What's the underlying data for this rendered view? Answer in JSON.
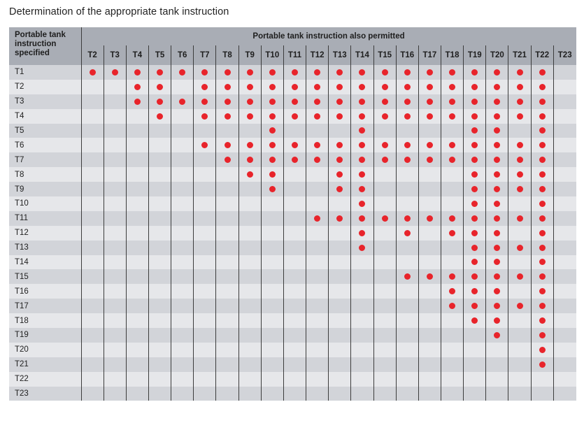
{
  "title": "Determination of the appropriate tank instruction",
  "header": {
    "corner_line1": "Portable tank",
    "corner_line2": "instruction",
    "corner_line3": "specified",
    "permitted_label": "Portable tank instruction also permitted"
  },
  "colors": {
    "dot": "#e8242b",
    "header_bg": "#a9adb5"
  },
  "chart_data": {
    "type": "table",
    "title": "Determination of the appropriate tank instruction",
    "row_header": "Portable tank instruction specified",
    "column_header": "Portable tank instruction also permitted",
    "columns": [
      "T2",
      "T3",
      "T4",
      "T5",
      "T6",
      "T7",
      "T8",
      "T9",
      "T10",
      "T11",
      "T12",
      "T13",
      "T14",
      "T15",
      "T16",
      "T17",
      "T18",
      "T19",
      "T20",
      "T21",
      "T22",
      "T23"
    ],
    "rows": [
      {
        "label": "T1",
        "permitted": [
          "T2",
          "T3",
          "T4",
          "T5",
          "T6",
          "T7",
          "T8",
          "T9",
          "T10",
          "T11",
          "T12",
          "T13",
          "T14",
          "T15",
          "T16",
          "T17",
          "T18",
          "T19",
          "T20",
          "T21",
          "T22"
        ]
      },
      {
        "label": "T2",
        "permitted": [
          "T4",
          "T5",
          "T7",
          "T8",
          "T9",
          "T10",
          "T11",
          "T12",
          "T13",
          "T14",
          "T15",
          "T16",
          "T17",
          "T18",
          "T19",
          "T20",
          "T21",
          "T22"
        ]
      },
      {
        "label": "T3",
        "permitted": [
          "T4",
          "T5",
          "T6",
          "T7",
          "T8",
          "T9",
          "T10",
          "T11",
          "T12",
          "T13",
          "T14",
          "T15",
          "T16",
          "T17",
          "T18",
          "T19",
          "T20",
          "T21",
          "T22"
        ]
      },
      {
        "label": "T4",
        "permitted": [
          "T5",
          "T7",
          "T8",
          "T9",
          "T10",
          "T11",
          "T12",
          "T13",
          "T14",
          "T15",
          "T16",
          "T17",
          "T18",
          "T19",
          "T20",
          "T21",
          "T22"
        ]
      },
      {
        "label": "T5",
        "permitted": [
          "T10",
          "T14",
          "T19",
          "T20",
          "T22"
        ]
      },
      {
        "label": "T6",
        "permitted": [
          "T7",
          "T8",
          "T9",
          "T10",
          "T11",
          "T12",
          "T13",
          "T14",
          "T15",
          "T16",
          "T17",
          "T18",
          "T19",
          "T20",
          "T21",
          "T22"
        ]
      },
      {
        "label": "T7",
        "permitted": [
          "T8",
          "T9",
          "T10",
          "T11",
          "T12",
          "T13",
          "T14",
          "T15",
          "T16",
          "T17",
          "T18",
          "T19",
          "T20",
          "T21",
          "T22"
        ]
      },
      {
        "label": "T8",
        "permitted": [
          "T9",
          "T10",
          "T13",
          "T14",
          "T19",
          "T20",
          "T21",
          "T22"
        ]
      },
      {
        "label": "T9",
        "permitted": [
          "T10",
          "T13",
          "T14",
          "T19",
          "T20",
          "T21",
          "T22"
        ]
      },
      {
        "label": "T10",
        "permitted": [
          "T14",
          "T19",
          "T20",
          "T22"
        ]
      },
      {
        "label": "T11",
        "permitted": [
          "T12",
          "T13",
          "T14",
          "T15",
          "T16",
          "T17",
          "T18",
          "T19",
          "T20",
          "T21",
          "T22"
        ]
      },
      {
        "label": "T12",
        "permitted": [
          "T14",
          "T16",
          "T18",
          "T19",
          "T20",
          "T22"
        ]
      },
      {
        "label": "T13",
        "permitted": [
          "T14",
          "T19",
          "T20",
          "T21",
          "T22"
        ]
      },
      {
        "label": "T14",
        "permitted": [
          "T19",
          "T20",
          "T22"
        ]
      },
      {
        "label": "T15",
        "permitted": [
          "T16",
          "T17",
          "T18",
          "T19",
          "T20",
          "T21",
          "T22"
        ]
      },
      {
        "label": "T16",
        "permitted": [
          "T18",
          "T19",
          "T20",
          "T22"
        ]
      },
      {
        "label": "T17",
        "permitted": [
          "T18",
          "T19",
          "T20",
          "T21",
          "T22"
        ]
      },
      {
        "label": "T18",
        "permitted": [
          "T19",
          "T20",
          "T22"
        ]
      },
      {
        "label": "T19",
        "permitted": [
          "T20",
          "T22"
        ]
      },
      {
        "label": "T20",
        "permitted": [
          "T22"
        ]
      },
      {
        "label": "T21",
        "permitted": [
          "T22"
        ]
      },
      {
        "label": "T22",
        "permitted": []
      },
      {
        "label": "T23",
        "permitted": []
      }
    ]
  }
}
